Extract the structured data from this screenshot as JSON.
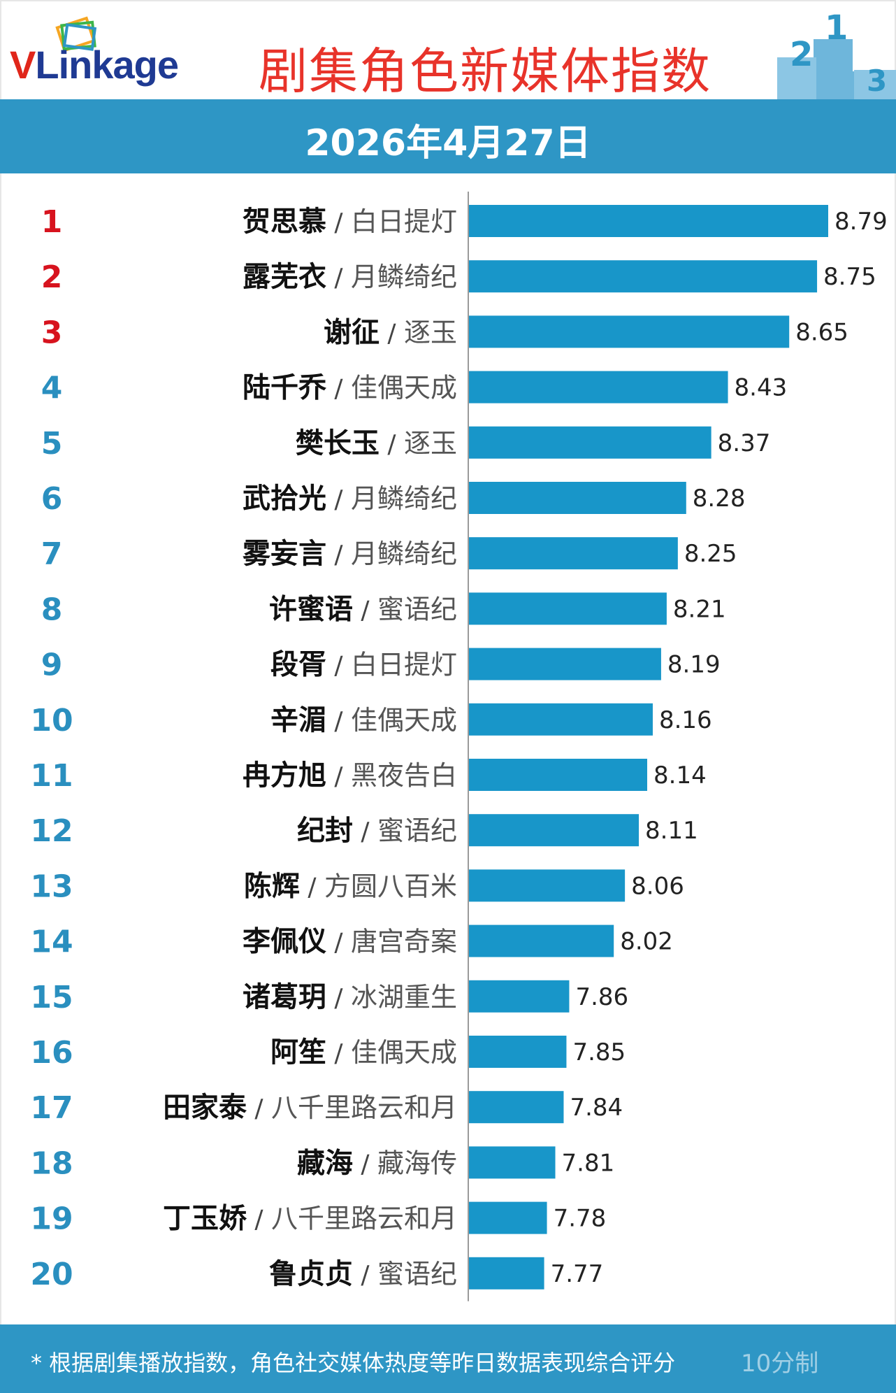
{
  "header": {
    "logo_v": "V",
    "logo_rest": "Linkage",
    "title": "剧集角色新媒体指数",
    "date": "2026年4月27日"
  },
  "colors": {
    "accent": "#2e96c5",
    "bar": "#1896c9",
    "title": "#e8332a",
    "top_rank": "#d7131e",
    "rank": "#2a8fbf"
  },
  "chart_data": {
    "type": "bar",
    "orientation": "horizontal",
    "title": "剧集角色新媒体指数",
    "items": [
      {
        "rank": "1",
        "name": "贺思慕",
        "show": "白日提灯",
        "value": 8.79
      },
      {
        "rank": "2",
        "name": "露芜衣",
        "show": "月鳞绮纪",
        "value": 8.75
      },
      {
        "rank": "3",
        "name": "谢征",
        "show": "逐玉",
        "value": 8.65
      },
      {
        "rank": "4",
        "name": "陆千乔",
        "show": "佳偶天成",
        "value": 8.43
      },
      {
        "rank": "5",
        "name": "樊长玉",
        "show": "逐玉",
        "value": 8.37
      },
      {
        "rank": "6",
        "name": "武拾光",
        "show": "月鳞绮纪",
        "value": 8.28
      },
      {
        "rank": "7",
        "name": "雾妄言",
        "show": "月鳞绮纪",
        "value": 8.25
      },
      {
        "rank": "8",
        "name": "许蜜语",
        "show": "蜜语纪",
        "value": 8.21
      },
      {
        "rank": "9",
        "name": "段胥",
        "show": "白日提灯",
        "value": 8.19
      },
      {
        "rank": "10",
        "name": "辛湄",
        "show": "佳偶天成",
        "value": 8.16
      },
      {
        "rank": "11",
        "name": "冉方旭",
        "show": "黑夜告白",
        "value": 8.14
      },
      {
        "rank": "12",
        "name": "纪封",
        "show": "蜜语纪",
        "value": 8.11
      },
      {
        "rank": "13",
        "name": "陈辉",
        "show": "方圆八百米",
        "value": 8.06
      },
      {
        "rank": "14",
        "name": "李佩仪",
        "show": "唐宫奇案",
        "value": 8.02
      },
      {
        "rank": "15",
        "name": "诸葛玥",
        "show": "冰湖重生",
        "value": 7.86
      },
      {
        "rank": "16",
        "name": "阿笙",
        "show": "佳偶天成",
        "value": 7.85
      },
      {
        "rank": "17",
        "name": "田家泰",
        "show": "八千里路云和月",
        "value": 7.84
      },
      {
        "rank": "18",
        "name": "藏海",
        "show": "藏海传",
        "value": 7.81
      },
      {
        "rank": "19",
        "name": "丁玉娇",
        "show": "八千里路云和月",
        "value": 7.78
      },
      {
        "rank": "20",
        "name": "鲁贞贞",
        "show": "蜜语纪",
        "value": 7.77
      }
    ],
    "separator": "/",
    "legend": "none",
    "grid": false
  },
  "footer": {
    "note": "* 根据剧集播放指数，角色社交媒体热度等昨日数据表现综合评分",
    "watermark": "10分制"
  }
}
